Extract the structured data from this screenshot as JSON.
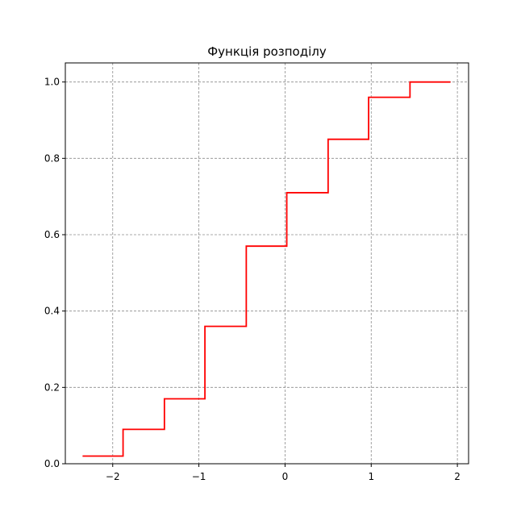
{
  "chart_data": {
    "type": "line",
    "step": "post",
    "title": "Функція розподілу",
    "xlabel": "",
    "ylabel": "",
    "xlim": [
      -2.55,
      2.13
    ],
    "ylim": [
      0.0,
      1.05
    ],
    "x_ticks": [
      -2,
      -1,
      0,
      1,
      2
    ],
    "x_tick_labels": [
      "−2",
      "−1",
      "0",
      "1",
      "2"
    ],
    "y_ticks": [
      0.0,
      0.2,
      0.4,
      0.6,
      0.8,
      1.0
    ],
    "y_tick_labels": [
      "0.0",
      "0.2",
      "0.4",
      "0.6",
      "0.8",
      "1.0"
    ],
    "grid": true,
    "legend": "none",
    "series": [
      {
        "color": "#ff0000",
        "x": [
          -2.35,
          -1.88,
          -1.4,
          -0.93,
          -0.45,
          0.02,
          0.5,
          0.97,
          1.45,
          1.92
        ],
        "y": [
          0.02,
          0.09,
          0.17,
          0.36,
          0.57,
          0.71,
          0.85,
          0.96,
          1.0,
          1.0
        ]
      }
    ]
  }
}
